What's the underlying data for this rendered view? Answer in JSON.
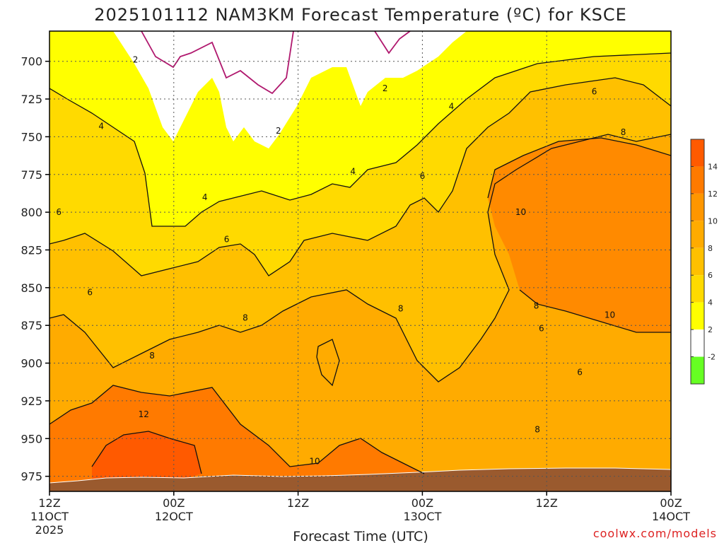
{
  "chart_data": {
    "type": "heatmap",
    "title": "2025101112 NAM3KM Forecast Temperature (ºC) for KSCE",
    "xlabel": "Forecast Time (UTC)",
    "ylabel": "",
    "y_axis": {
      "ticks": [
        700,
        725,
        750,
        775,
        800,
        825,
        850,
        875,
        900,
        925,
        950,
        975
      ],
      "range": [
        680,
        985
      ]
    },
    "x_axis": {
      "ticks": [
        {
          "hour": 0,
          "line1": "12Z",
          "line2": "11OCT",
          "line3": "2025"
        },
        {
          "hour": 12,
          "line1": "00Z",
          "line2": "12OCT",
          "line3": ""
        },
        {
          "hour": 24,
          "line1": "12Z",
          "line2": "",
          "line3": ""
        },
        {
          "hour": 36,
          "line1": "00Z",
          "line2": "13OCT",
          "line3": ""
        },
        {
          "hour": 48,
          "line1": "12Z",
          "line2": "",
          "line3": ""
        },
        {
          "hour": 60,
          "line1": "00Z",
          "line2": "14OCT",
          "line3": ""
        }
      ],
      "range": [
        0,
        60
      ]
    },
    "colorbar": {
      "labels": [
        "14",
        "12",
        "10",
        "8",
        "6",
        "4",
        "2",
        "-2"
      ],
      "bins": [
        {
          "min": 14,
          "color": "#ff5a00"
        },
        {
          "min": 12,
          "color": "#ff7a00"
        },
        {
          "min": 10,
          "color": "#ff9600"
        },
        {
          "min": 8,
          "color": "#ffab00"
        },
        {
          "min": 6,
          "color": "#ffc000"
        },
        {
          "min": 4,
          "color": "#ffda00"
        },
        {
          "min": 2,
          "color": "#ffff00"
        },
        {
          "min": -2,
          "color": "#ffffff"
        },
        {
          "min": -99,
          "color": "#66ff22"
        }
      ]
    },
    "zero_contour_color": "#b0186e",
    "terrain_color": "#9a5a2e",
    "contour_labels": [
      {
        "value": "2",
        "hour": 8.3,
        "p": 699
      },
      {
        "value": "2",
        "hour": 22.1,
        "p": 746
      },
      {
        "value": "2",
        "hour": 32.4,
        "p": 718
      },
      {
        "value": "4",
        "hour": 5.0,
        "p": 743
      },
      {
        "value": "4",
        "hour": 15.0,
        "p": 790
      },
      {
        "value": "4",
        "hour": 29.3,
        "p": 773
      },
      {
        "value": "4",
        "hour": 38.8,
        "p": 730
      },
      {
        "value": "6",
        "hour": 0.9,
        "p": 800
      },
      {
        "value": "6",
        "hour": 17.1,
        "p": 818
      },
      {
        "value": "6",
        "hour": 3.9,
        "p": 853
      },
      {
        "value": "6",
        "hour": 36.0,
        "p": 776
      },
      {
        "value": "6",
        "hour": 52.6,
        "p": 720
      },
      {
        "value": "6",
        "hour": 47.5,
        "p": 877
      },
      {
        "value": "6",
        "hour": 51.2,
        "p": 906
      },
      {
        "value": "8",
        "hour": 55.4,
        "p": 747
      },
      {
        "value": "8",
        "hour": 18.9,
        "p": 870
      },
      {
        "value": "8",
        "hour": 9.9,
        "p": 895
      },
      {
        "value": "8",
        "hour": 33.9,
        "p": 864
      },
      {
        "value": "8",
        "hour": 47.0,
        "p": 862
      },
      {
        "value": "8",
        "hour": 47.1,
        "p": 944
      },
      {
        "value": "10",
        "hour": 45.5,
        "p": 800
      },
      {
        "value": "10",
        "hour": 54.1,
        "p": 868
      },
      {
        "value": "10",
        "hour": 25.6,
        "p": 965
      },
      {
        "value": "12",
        "hour": 9.1,
        "p": 934
      }
    ]
  },
  "credit": "coolwx.com/models"
}
